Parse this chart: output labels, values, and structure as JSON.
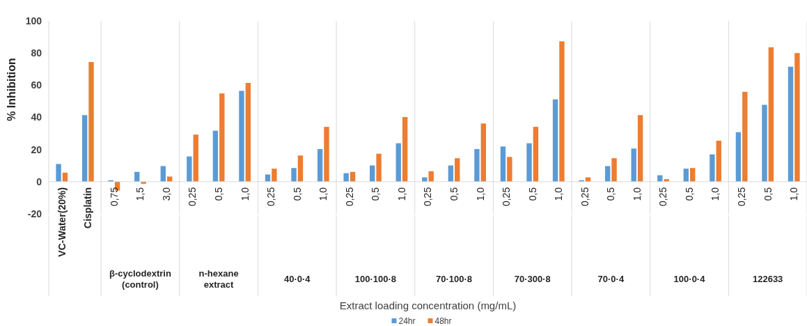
{
  "chart_data": {
    "type": "bar",
    "xlabel": "Extract loading concentration (mg/mL)",
    "ylabel": "% Inhibition",
    "categories": [
      "VC-Water(20%)",
      "Cisplatin",
      "0,75",
      "1,5",
      "3,0",
      "0,25",
      "0,5",
      "1,0",
      "0,25",
      "0,5",
      "1,0",
      "0,25",
      "0,5",
      "1,0",
      "0,25",
      "0,5",
      "1,0",
      "0,25",
      "0,5",
      "1,0",
      "0,25",
      "0,5",
      "1,0",
      "0,25",
      "0,5",
      "1,0",
      "0,25",
      "0,5",
      "1,0"
    ],
    "series": [
      {
        "name": "24hr",
        "color": "#5b9bd5",
        "values": [
          11,
          41.4,
          0.9,
          6.1,
          9.7,
          15.7,
          31.7,
          56.5,
          4.5,
          8.5,
          20.3,
          5.3,
          10.1,
          23.9,
          2.7,
          10.1,
          20.3,
          21.9,
          23.9,
          51.2,
          0.9,
          9.7,
          20.6,
          4,
          8.1,
          17,
          30.8,
          47.8,
          71.5
        ]
      },
      {
        "name": "48hr",
        "color": "#ed7d31",
        "values": [
          5.6,
          74.4,
          -5.5,
          -1.3,
          3.2,
          29.3,
          54.9,
          61.4,
          8.1,
          16.3,
          34.1,
          6.1,
          17.4,
          40.2,
          6.5,
          14.6,
          36.2,
          15.4,
          34.1,
          87.3,
          2.7,
          14.6,
          41.4,
          1.6,
          8.5,
          25.5,
          55.9,
          83.6,
          80
        ]
      }
    ],
    "annotations": [
      "β-cyclodextrin\n(control)",
      "n-hexane\nextract",
      "40·0·4",
      "100·100·8",
      "70·100·8",
      "70·300·8",
      "70·0·4",
      "100·0·4",
      "122633"
    ],
    "ylim": [
      -20,
      100
    ],
    "yticks": [
      -20,
      0,
      20,
      40,
      60,
      80,
      100
    ],
    "grid": false,
    "legend": "bottom"
  }
}
